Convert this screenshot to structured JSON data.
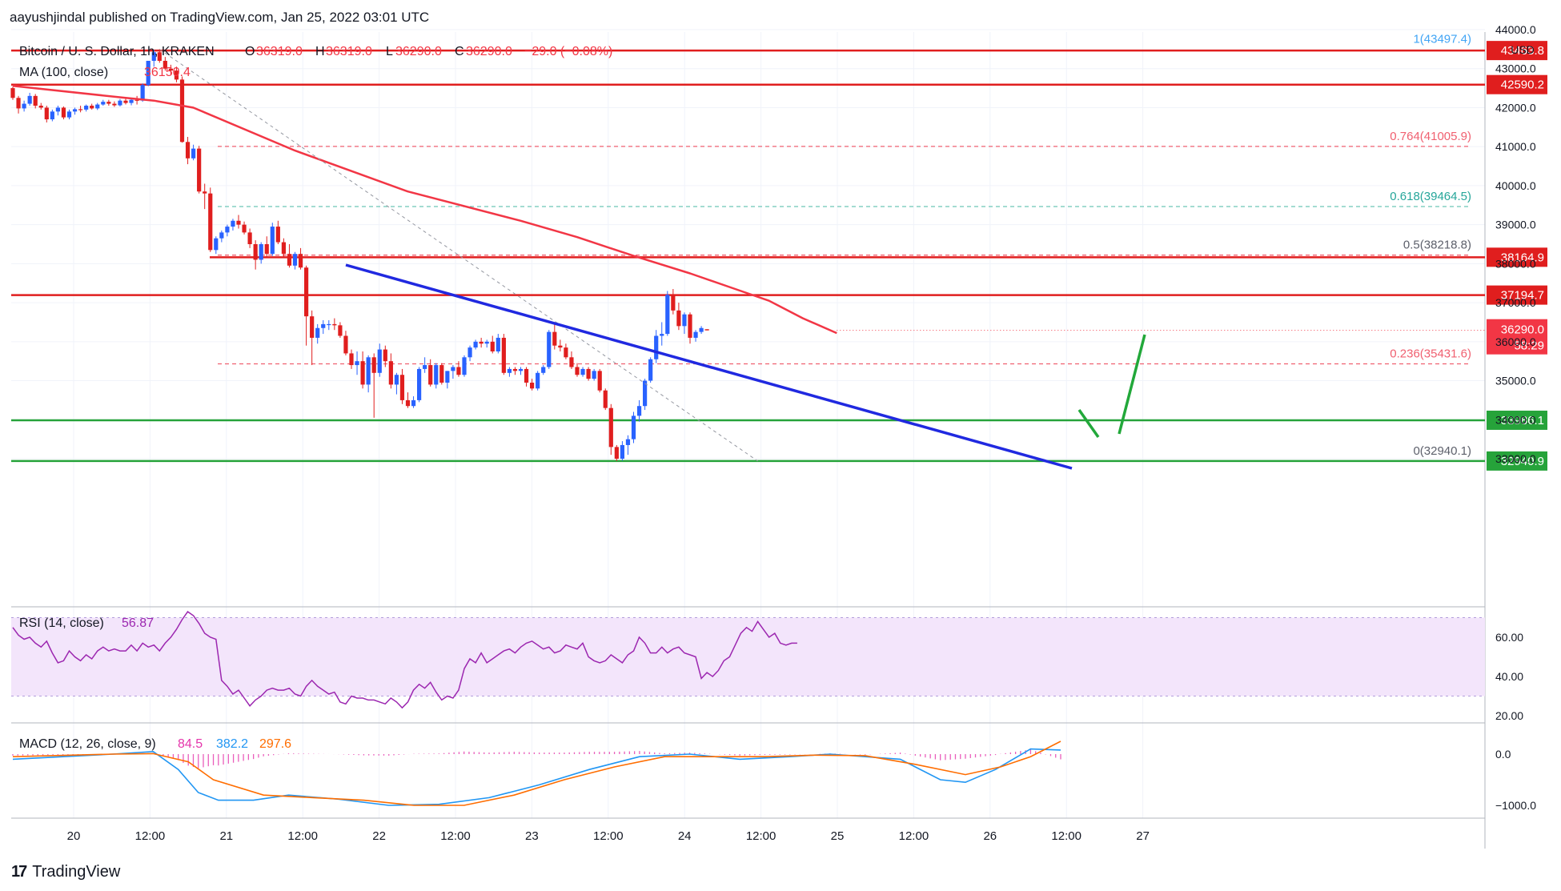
{
  "header": {
    "published": "aayushjindal published on TradingView.com, Jan 25, 2022 03:01 UTC",
    "symbol": "Bitcoin / U. S. Dollar, 1h, KRAKEN",
    "ohlc": {
      "o_label": "O",
      "o": "36319.0",
      "h_label": "H",
      "h": "36319.0",
      "l_label": "L",
      "l": "36290.0",
      "c_label": "C",
      "c": "36290.0",
      "change": "−29.0 (−0.08%)"
    },
    "ma_label": "MA (100, close)",
    "ma_value": "36150.4",
    "currency": "USD"
  },
  "footer": {
    "brand": "TradingView",
    "logo": "17"
  },
  "colors": {
    "up": "#2962ff",
    "down": "#e01e1e",
    "ma": "#f23645",
    "trendline": "#2029e0",
    "support": "#26a33a",
    "resistance": "#e01e1e",
    "fib_red": "#f06070",
    "fib_teal": "#6cc7b8",
    "projection": "#22a83a",
    "rsi_fill": "#f3e5fb",
    "rsi_line": "#9c27b0",
    "macd_line": "#2196f3",
    "signal_line": "#ff6d00",
    "hist": "#e535ab"
  },
  "chart_data": [
    {
      "type": "candlestick",
      "title": "Bitcoin / U. S. Dollar, 1h, KRAKEN",
      "x_ticks": [
        "20",
        "12:00",
        "21",
        "12:00",
        "22",
        "12:00",
        "23",
        "12:00",
        "24",
        "12:00",
        "25",
        "12:00",
        "26",
        "12:00",
        "27"
      ],
      "y_ticks": [
        "44000.0",
        "43000.0",
        "42000.0",
        "41000.0",
        "40000.0",
        "39000.0",
        "38000.0",
        "37000.0",
        "36000.0",
        "35000.0",
        "34000.0",
        "33000.0"
      ],
      "ylim": [
        32400,
        44000
      ],
      "candles": [
        [
          42500,
          42540,
          42200,
          42250
        ],
        [
          42250,
          42300,
          41850,
          41980
        ],
        [
          41980,
          42180,
          41900,
          42100
        ],
        [
          42100,
          42380,
          42050,
          42300
        ],
        [
          42300,
          42350,
          41980,
          42050
        ],
        [
          42050,
          42120,
          41950,
          42000
        ],
        [
          42000,
          42050,
          41620,
          41700
        ],
        [
          41700,
          41950,
          41650,
          41900
        ],
        [
          41900,
          42050,
          41800,
          42000
        ],
        [
          42000,
          42030,
          41700,
          41750
        ],
        [
          41750,
          41950,
          41700,
          41900
        ],
        [
          41900,
          42000,
          41820,
          41960
        ],
        [
          41960,
          42050,
          41880,
          41950
        ],
        [
          41950,
          42080,
          41900,
          42050
        ],
        [
          42050,
          42100,
          41950,
          41980
        ],
        [
          41980,
          42120,
          41940,
          42080
        ],
        [
          42080,
          42200,
          42050,
          42150
        ],
        [
          42150,
          42200,
          42050,
          42100
        ],
        [
          42100,
          42160,
          42020,
          42060
        ],
        [
          42060,
          42220,
          42030,
          42180
        ],
        [
          42180,
          42240,
          42080,
          42120
        ],
        [
          42120,
          42250,
          42060,
          42200
        ],
        [
          42200,
          42300,
          42080,
          42180
        ],
        [
          42180,
          42620,
          42150,
          42580
        ],
        [
          42580,
          43200,
          42550,
          43200
        ],
        [
          43200,
          43480,
          43050,
          43420
        ],
        [
          43420,
          43500,
          43150,
          43200
        ],
        [
          43200,
          43300,
          42950,
          43000
        ],
        [
          43000,
          43100,
          42850,
          42950
        ],
        [
          42950,
          43050,
          42650,
          42720
        ],
        [
          42720,
          42800,
          41100,
          41120
        ],
        [
          41120,
          41250,
          40550,
          40700
        ],
        [
          40700,
          41050,
          40650,
          40950
        ],
        [
          40950,
          41020,
          39800,
          39850
        ],
        [
          39850,
          40050,
          39400,
          39800
        ],
        [
          39800,
          39950,
          38300,
          38350
        ],
        [
          38350,
          38700,
          38250,
          38650
        ],
        [
          38650,
          38850,
          38550,
          38800
        ],
        [
          38800,
          39000,
          38700,
          38950
        ],
        [
          38950,
          39150,
          38850,
          39100
        ],
        [
          39100,
          39250,
          38900,
          39000
        ],
        [
          39000,
          39080,
          38750,
          38800
        ],
        [
          38800,
          38900,
          38400,
          38500
        ],
        [
          38500,
          38600,
          37850,
          38100
        ],
        [
          38100,
          38550,
          38000,
          38500
        ],
        [
          38500,
          38700,
          38150,
          38250
        ],
        [
          38250,
          39050,
          38200,
          38950
        ],
        [
          38950,
          39100,
          38500,
          38550
        ],
        [
          38550,
          38650,
          38150,
          38250
        ],
        [
          38250,
          38500,
          37900,
          37950
        ],
        [
          37950,
          38300,
          37850,
          38250
        ],
        [
          38250,
          38400,
          37850,
          37900
        ],
        [
          37900,
          37950,
          35900,
          36650
        ],
        [
          36650,
          36800,
          35400,
          36100
        ],
        [
          36100,
          36450,
          35950,
          36350
        ],
        [
          36350,
          36550,
          36200,
          36450
        ],
        [
          36450,
          36550,
          36300,
          36450
        ],
        [
          36450,
          36600,
          36300,
          36420
        ],
        [
          36420,
          36500,
          36100,
          36150
        ],
        [
          36150,
          36280,
          35650,
          35700
        ],
        [
          35700,
          35800,
          35300,
          35400
        ],
        [
          35400,
          35750,
          35150,
          35500
        ],
        [
          35500,
          35750,
          34800,
          34900
        ],
        [
          34900,
          35650,
          34700,
          35600
        ],
        [
          35600,
          35700,
          34050,
          35200
        ],
        [
          35200,
          35950,
          35100,
          35800
        ],
        [
          35800,
          35900,
          35350,
          35500
        ],
        [
          35500,
          35700,
          34800,
          34900
        ],
        [
          34900,
          35200,
          34650,
          35150
        ],
        [
          35150,
          35300,
          34400,
          34500
        ],
        [
          34500,
          34700,
          34300,
          34350
        ],
        [
          34350,
          34600,
          34300,
          34500
        ],
        [
          34500,
          35350,
          34450,
          35300
        ],
        [
          35300,
          35600,
          35200,
          35400
        ],
        [
          35400,
          35550,
          34850,
          34900
        ],
        [
          34900,
          35450,
          34800,
          35400
        ],
        [
          35400,
          35450,
          34900,
          34950
        ],
        [
          34950,
          35250,
          34800,
          35250
        ],
        [
          35250,
          35400,
          35050,
          35350
        ],
        [
          35350,
          35500,
          35100,
          35150
        ],
        [
          35150,
          35650,
          35100,
          35600
        ],
        [
          35600,
          35900,
          35500,
          35850
        ],
        [
          35850,
          36050,
          35800,
          36000
        ],
        [
          36000,
          36100,
          35850,
          35950
        ],
        [
          35950,
          36050,
          35850,
          36000
        ],
        [
          36000,
          36150,
          35700,
          35750
        ],
        [
          35750,
          36200,
          35700,
          36100
        ],
        [
          36100,
          36200,
          35150,
          35200
        ],
        [
          35200,
          35350,
          35100,
          35300
        ],
        [
          35300,
          35350,
          35150,
          35250
        ],
        [
          35250,
          35350,
          35150,
          35300
        ],
        [
          35300,
          35350,
          34850,
          34950
        ],
        [
          34950,
          35050,
          34750,
          34800
        ],
        [
          34800,
          35250,
          34750,
          35200
        ],
        [
          35200,
          35400,
          35150,
          35350
        ],
        [
          35350,
          36300,
          35300,
          36250
        ],
        [
          36250,
          36450,
          35800,
          35900
        ],
        [
          35900,
          36050,
          35750,
          35850
        ],
        [
          35850,
          35950,
          35550,
          35600
        ],
        [
          35600,
          35750,
          35300,
          35350
        ],
        [
          35350,
          35450,
          35100,
          35150
        ],
        [
          35150,
          35350,
          35100,
          35300
        ],
        [
          35300,
          35350,
          35000,
          35050
        ],
        [
          35050,
          35300,
          35000,
          35250
        ],
        [
          35250,
          35300,
          34700,
          34750
        ],
        [
          34750,
          34800,
          34250,
          34300
        ],
        [
          34300,
          34400,
          33100,
          33300
        ],
        [
          33300,
          33350,
          32940,
          33000
        ],
        [
          33000,
          33450,
          32950,
          33350
        ],
        [
          33350,
          33600,
          33100,
          33500
        ],
        [
          33500,
          34200,
          33400,
          34100
        ],
        [
          34100,
          34500,
          33950,
          34350
        ],
        [
          34350,
          35050,
          34250,
          35000
        ],
        [
          35000,
          35600,
          34950,
          35550
        ],
        [
          35550,
          36300,
          35450,
          36150
        ],
        [
          36150,
          36500,
          35900,
          36200
        ],
        [
          36200,
          37300,
          36150,
          37200
        ],
        [
          37200,
          37350,
          36700,
          36800
        ],
        [
          36800,
          37000,
          36300,
          36400
        ],
        [
          36400,
          36750,
          36200,
          36700
        ],
        [
          36700,
          36750,
          35950,
          36100
        ],
        [
          36100,
          36300,
          36000,
          36250
        ],
        [
          36250,
          36400,
          36200,
          36350
        ],
        [
          36319,
          36319,
          36290,
          36290
        ]
      ],
      "ma100": [
        [
          0,
          42560
        ],
        [
          20,
          42250
        ],
        [
          25,
          42180
        ],
        [
          32,
          42000
        ],
        [
          50,
          40900
        ],
        [
          70,
          39850
        ],
        [
          90,
          39100
        ],
        [
          100,
          38680
        ],
        [
          110,
          38200
        ],
        [
          120,
          37750
        ],
        [
          128,
          37350
        ],
        [
          134,
          37050
        ],
        [
          140,
          36600
        ],
        [
          146,
          36220
        ]
      ],
      "levels": [
        {
          "kind": "solid",
          "label": "43463.8",
          "value": 43463.8,
          "color": "#e01e1e"
        },
        {
          "kind": "solid",
          "label": "42590.2",
          "value": 42590.2,
          "color": "#e01e1e"
        },
        {
          "kind": "solid",
          "label": "38164.9",
          "value": 38164.9,
          "color": "#e01e1e"
        },
        {
          "kind": "solid",
          "label": "37194.7",
          "value": 37194.7,
          "color": "#e01e1e"
        },
        {
          "kind": "solid",
          "label": "33986.1",
          "value": 33986.1,
          "color": "#26a33a"
        },
        {
          "kind": "solid",
          "label": "32940.9",
          "value": 32940.9,
          "color": "#26a33a"
        }
      ],
      "fib": [
        {
          "ratio": "1",
          "value": 43497.4,
          "text": "1(43497.4)",
          "color": "#42a5f5"
        },
        {
          "ratio": "0.764",
          "value": 41005.9,
          "text": "0.764(41005.9)",
          "color": "#f06070"
        },
        {
          "ratio": "0.618",
          "value": 39464.5,
          "text": "0.618(39464.5)",
          "color": "#26a69a"
        },
        {
          "ratio": "0.5",
          "value": 38218.8,
          "text": "0.5(38218.8)",
          "color": "#5d606b"
        },
        {
          "ratio": "0.236",
          "value": 35431.6,
          "text": "0.236(35431.6)",
          "color": "#f06070"
        },
        {
          "ratio": "0",
          "value": 32940.1,
          "text": "0(32940.1)",
          "color": "#5d606b"
        }
      ],
      "price_label": "36290.0",
      "countdown": "58:29"
    },
    {
      "type": "line",
      "title": "RSI (14, close)",
      "value_label": "56.87",
      "y_ticks": [
        "60.00",
        "40.00",
        "20.00"
      ],
      "band": [
        30,
        70
      ],
      "values": [
        65,
        61,
        59,
        60,
        57,
        55,
        58,
        52,
        47,
        48,
        53,
        50,
        48,
        51,
        49,
        53,
        55,
        53,
        54,
        53,
        53,
        56,
        53,
        57,
        55,
        56,
        53,
        57,
        60,
        64,
        69,
        73,
        71,
        67,
        62,
        60,
        59,
        38,
        35,
        31,
        33,
        29,
        25,
        28,
        30,
        33,
        34,
        33,
        33,
        34,
        31,
        30,
        35,
        38,
        35,
        33,
        31,
        32,
        27,
        26,
        30,
        29,
        29,
        28,
        28,
        27,
        26,
        29,
        27,
        24,
        27,
        33,
        36,
        34,
        37,
        32,
        28,
        30,
        29,
        33,
        44,
        49,
        47,
        52,
        47,
        49,
        51,
        53,
        54,
        52,
        55,
        57,
        58,
        56,
        54,
        55,
        52,
        53,
        56,
        55,
        54,
        57,
        50,
        48,
        47,
        48,
        51,
        49,
        47,
        51,
        53,
        60,
        57,
        52,
        52,
        55,
        52,
        54,
        55,
        52,
        51,
        50,
        39,
        42,
        40,
        43,
        48,
        50,
        56,
        62,
        65,
        63,
        68,
        64,
        60,
        62,
        57,
        56,
        57,
        57
      ]
    },
    {
      "type": "line+bar",
      "title": "MACD (12, 26, close, 9)",
      "macd_label": "84.5",
      "signal_label": "382.2",
      "hist_label": "297.6",
      "y_ticks": [
        "0.0",
        "−1000.0"
      ],
      "macd": [
        [
          0,
          -100
        ],
        [
          20,
          0
        ],
        [
          28,
          50
        ],
        [
          33,
          -300
        ],
        [
          37,
          -750
        ],
        [
          41,
          -900
        ],
        [
          48,
          -900
        ],
        [
          55,
          -800
        ],
        [
          65,
          -880
        ],
        [
          75,
          -1000
        ],
        [
          85,
          -980
        ],
        [
          95,
          -850
        ],
        [
          105,
          -600
        ],
        [
          115,
          -300
        ],
        [
          125,
          -50
        ],
        [
          135,
          0
        ],
        [
          145,
          -100
        ],
        [
          155,
          -50
        ],
        [
          163,
          0
        ],
        [
          170,
          -50
        ],
        [
          177,
          -100
        ],
        [
          185,
          -500
        ],
        [
          190,
          -550
        ],
        [
          196,
          -300
        ],
        [
          203,
          100
        ],
        [
          209,
          80
        ]
      ],
      "signal": [
        [
          0,
          -50
        ],
        [
          20,
          0
        ],
        [
          28,
          10
        ],
        [
          35,
          -150
        ],
        [
          40,
          -500
        ],
        [
          50,
          -800
        ],
        [
          60,
          -850
        ],
        [
          70,
          -900
        ],
        [
          80,
          -1000
        ],
        [
          90,
          -1000
        ],
        [
          100,
          -800
        ],
        [
          110,
          -500
        ],
        [
          120,
          -250
        ],
        [
          130,
          -50
        ],
        [
          140,
          -50
        ],
        [
          150,
          -50
        ],
        [
          160,
          -20
        ],
        [
          170,
          -30
        ],
        [
          180,
          -200
        ],
        [
          190,
          -400
        ],
        [
          197,
          -250
        ],
        [
          203,
          -50
        ],
        [
          209,
          250
        ]
      ],
      "hist_series": "histogram"
    }
  ]
}
